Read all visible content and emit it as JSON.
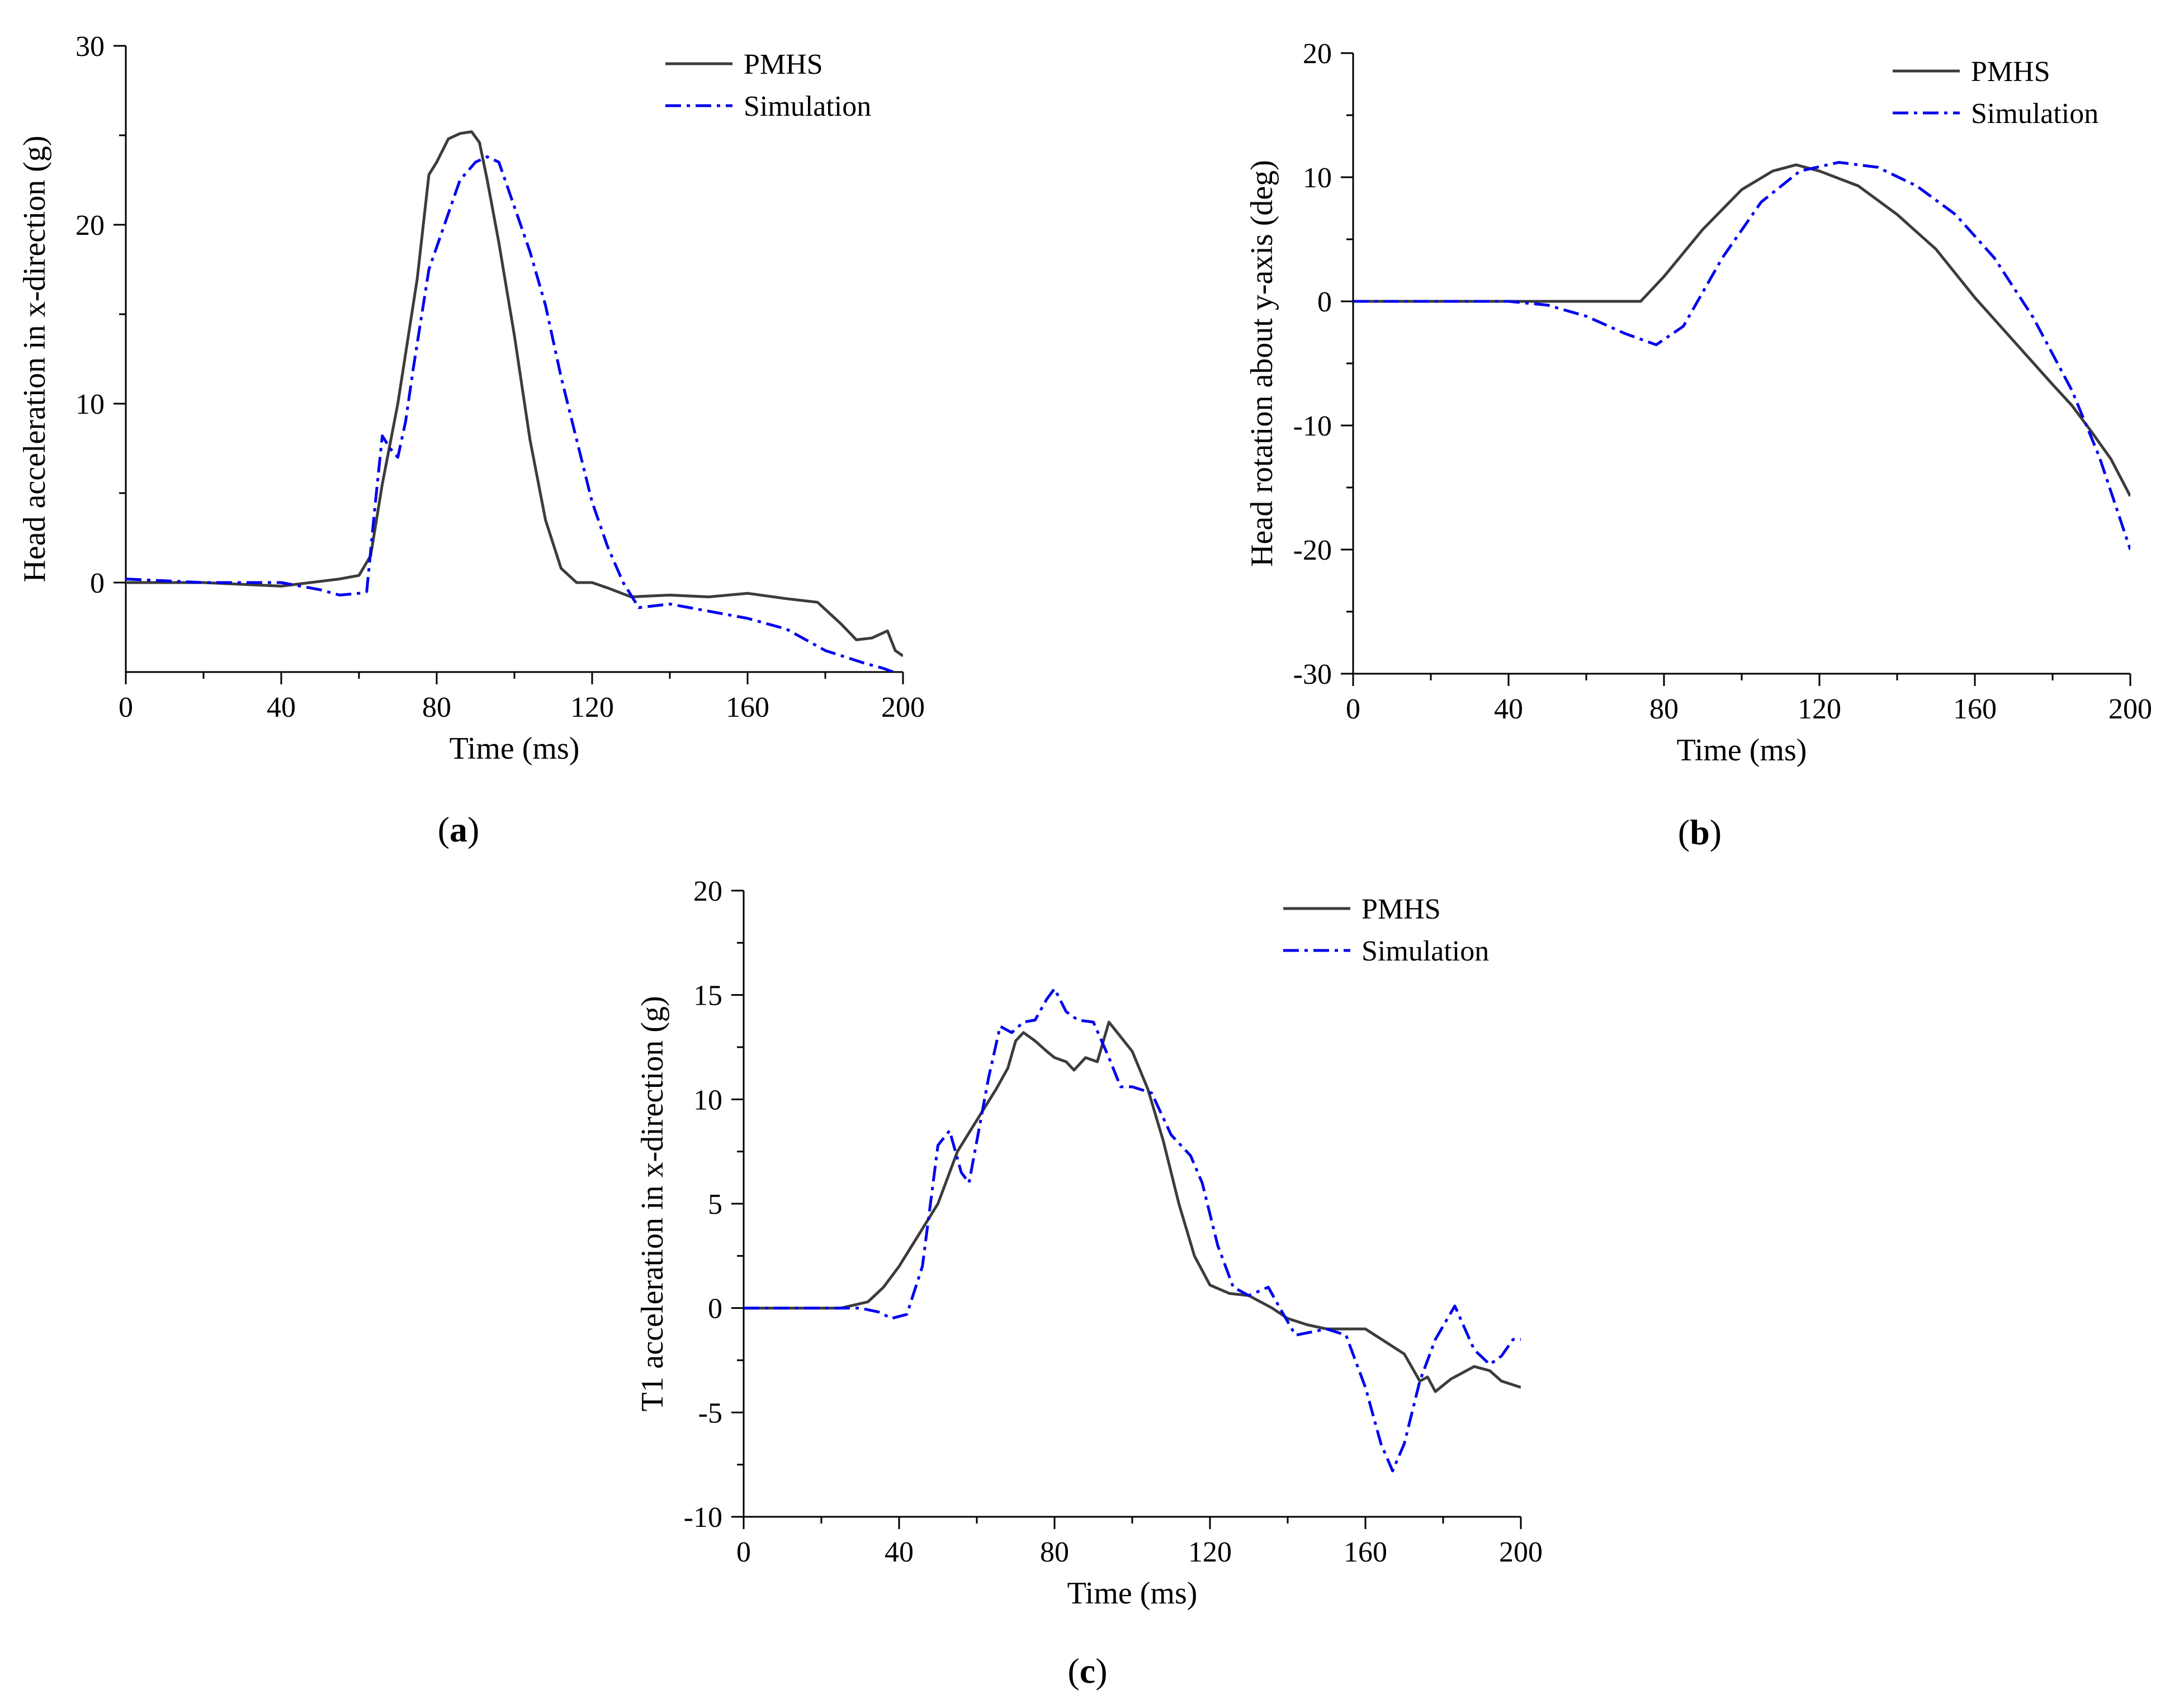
{
  "colors": {
    "pmhs": "#3c3c3c",
    "simulation": "#0000ee",
    "axis": "#000000"
  },
  "chart_data": [
    {
      "type": "line",
      "panel": "a",
      "caption": {
        "open": "(",
        "letter": "a",
        "close": ")"
      },
      "xlabel": "Time (ms)",
      "ylabel": "Head acceleration in x-direction (g)",
      "xlim": [
        0,
        200
      ],
      "ylim": [
        -5,
        30
      ],
      "xticks": [
        0,
        40,
        80,
        120,
        160,
        200
      ],
      "yticks": [
        0,
        10,
        20,
        30
      ],
      "legend": {
        "position": "top-right"
      },
      "series": [
        {
          "name": "PMHS",
          "style": "solid",
          "x": [
            0,
            20,
            40,
            55,
            60,
            63,
            66,
            70,
            75,
            78,
            80,
            83,
            86,
            89,
            91,
            93,
            96,
            100,
            104,
            108,
            112,
            116,
            120,
            124,
            130,
            140,
            150,
            160,
            170,
            178,
            184,
            188,
            192,
            196,
            198,
            200
          ],
          "y": [
            0,
            0,
            -0.2,
            0.2,
            0.4,
            1.5,
            5.5,
            10,
            17,
            22.8,
            23.5,
            24.8,
            25.1,
            25.2,
            24.6,
            22.5,
            19,
            13.8,
            8,
            3.5,
            0.8,
            0,
            0,
            -0.3,
            -0.8,
            -0.7,
            -0.8,
            -0.6,
            -0.9,
            -1.1,
            -2.3,
            -3.2,
            -3.1,
            -2.7,
            -3.8,
            -4.1
          ]
        },
        {
          "name": "Simulation",
          "style": "dashdot",
          "x": [
            0,
            20,
            40,
            50,
            55,
            60,
            62,
            64,
            66,
            68,
            70,
            72,
            74,
            78,
            82,
            86,
            90,
            93,
            96,
            100,
            104,
            108,
            112,
            116,
            120,
            124,
            128,
            132,
            140,
            150,
            160,
            170,
            180,
            190,
            195,
            200
          ],
          "y": [
            0.2,
            0,
            0,
            -0.4,
            -0.7,
            -0.6,
            -0.5,
            4,
            8.2,
            7.5,
            7,
            9,
            12,
            17.5,
            20,
            22.5,
            23.5,
            23.8,
            23.5,
            21,
            18.5,
            15.5,
            11.5,
            8,
            4.5,
            2,
            0,
            -1.4,
            -1.2,
            -1.6,
            -2,
            -2.6,
            -3.8,
            -4.5,
            -4.8,
            -5.2
          ]
        }
      ]
    },
    {
      "type": "line",
      "panel": "b",
      "caption": {
        "open": "(",
        "letter": "b",
        "close": ")"
      },
      "xlabel": "Time (ms)",
      "ylabel": "Head rotation about y-axis (deg)",
      "xlim": [
        0,
        200
      ],
      "ylim": [
        -30,
        20
      ],
      "xticks": [
        0,
        40,
        80,
        120,
        160,
        200
      ],
      "yticks": [
        -30,
        -20,
        -10,
        0,
        10,
        20
      ],
      "legend": {
        "position": "top-right"
      },
      "series": [
        {
          "name": "PMHS",
          "style": "solid",
          "x": [
            0,
            40,
            74,
            80,
            90,
            100,
            108,
            114,
            120,
            130,
            140,
            150,
            160,
            170,
            180,
            185,
            190,
            195,
            200
          ],
          "y": [
            0,
            0,
            0,
            2,
            5.8,
            9,
            10.5,
            11,
            10.5,
            9.3,
            7,
            4.2,
            0.3,
            -3.2,
            -6.7,
            -8.4,
            -10.5,
            -12.7,
            -15.7
          ]
        },
        {
          "name": "Simulation",
          "style": "dashdot",
          "x": [
            0,
            40,
            50,
            60,
            70,
            78,
            85,
            95,
            105,
            115,
            125,
            135,
            145,
            155,
            165,
            175,
            185,
            192,
            200
          ],
          "y": [
            0,
            0,
            -0.3,
            -1.2,
            -2.6,
            -3.5,
            -2,
            3.5,
            8,
            10.5,
            11.2,
            10.8,
            9.3,
            7,
            3.5,
            -1.3,
            -7.2,
            -12.5,
            -20
          ]
        }
      ]
    },
    {
      "type": "line",
      "panel": "c",
      "caption": {
        "open": "(",
        "letter": "c",
        "close": ")"
      },
      "xlabel": "Time (ms)",
      "ylabel": "T1 acceleration in x-direction (g)",
      "xlim": [
        0,
        200
      ],
      "ylim": [
        -10,
        20
      ],
      "xticks": [
        0,
        40,
        80,
        120,
        160,
        200
      ],
      "yticks": [
        -10,
        -5,
        0,
        5,
        10,
        15,
        20
      ],
      "legend": {
        "position": "top-right"
      },
      "series": [
        {
          "name": "PMHS",
          "style": "solid",
          "x": [
            0,
            25,
            32,
            36,
            40,
            45,
            50,
            55,
            60,
            65,
            68,
            70,
            72,
            75,
            78,
            80,
            83,
            85,
            88,
            91,
            94,
            97,
            100,
            104,
            108,
            112,
            116,
            120,
            125,
            130,
            136,
            140,
            145,
            150,
            160,
            165,
            170,
            174,
            176,
            178,
            182,
            188,
            192,
            195,
            200
          ],
          "y": [
            0,
            0,
            0.3,
            1,
            2,
            3.5,
            5,
            7.5,
            9,
            10.5,
            11.5,
            12.8,
            13.2,
            12.8,
            12.3,
            12,
            11.8,
            11.4,
            12,
            11.8,
            13.7,
            13,
            12.3,
            10.5,
            8,
            5,
            2.5,
            1.1,
            0.7,
            0.6,
            0,
            -0.5,
            -0.8,
            -1,
            -1,
            -1.6,
            -2.2,
            -3.5,
            -3.3,
            -4,
            -3.4,
            -2.8,
            -3,
            -3.5,
            -3.8
          ]
        },
        {
          "name": "Simulation",
          "style": "dashdot",
          "x": [
            0,
            25,
            30,
            35,
            38,
            42,
            46,
            50,
            53,
            56,
            58,
            60,
            63,
            66,
            69,
            72,
            75,
            78,
            80,
            83,
            86,
            90,
            94,
            97,
            100,
            105,
            110,
            115,
            118,
            122,
            126,
            130,
            135,
            138,
            142,
            150,
            155,
            160,
            164,
            167,
            170,
            174,
            178,
            183,
            188,
            192,
            195,
            198,
            200
          ],
          "y": [
            0,
            0,
            0,
            -0.2,
            -0.5,
            -0.3,
            2,
            7.8,
            8.5,
            6.5,
            6,
            8,
            11,
            13.5,
            13.2,
            13.7,
            13.8,
            14.8,
            15.3,
            14.2,
            13.8,
            13.7,
            12,
            10.6,
            10.6,
            10.3,
            8.3,
            7.3,
            6,
            3,
            1,
            0.6,
            1,
            0,
            -1.3,
            -1,
            -1.3,
            -3.8,
            -6.5,
            -7.8,
            -6.5,
            -3.5,
            -1.5,
            0.1,
            -2,
            -2.7,
            -2.3,
            -1.5,
            -1.5
          ]
        }
      ]
    }
  ]
}
